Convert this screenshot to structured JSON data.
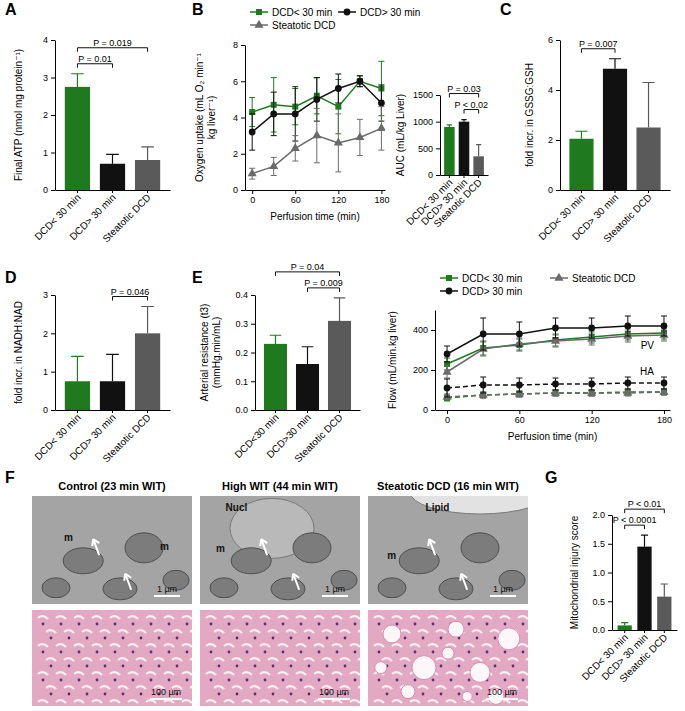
{
  "chart_data": [
    {
      "type": "bar",
      "label": "A",
      "ylabel": "Final ATP (nmol mg protein⁻¹)",
      "categories": [
        "DCD< 30 min",
        "DCD> 30 min",
        "Steatotic DCD"
      ],
      "values": [
        2.75,
        0.7,
        0.8
      ],
      "errors": [
        0.35,
        0.25,
        0.35
      ],
      "colors": [
        "#1f7a1f",
        "#111111",
        "#5a5a5a"
      ],
      "ylim": [
        0,
        4
      ],
      "yticks": [
        0,
        1,
        2,
        3,
        4
      ],
      "annotations": [
        {
          "text": "P = 0.01",
          "between": [
            "DCD< 30 min",
            "DCD> 30 min"
          ]
        },
        {
          "text": "P = 0.019",
          "between": [
            "DCD< 30 min",
            "Steatotic DCD"
          ]
        }
      ]
    },
    {
      "type": "line",
      "label": "B",
      "ylabel": [
        "Oxygen uptake (mL O₂ min⁻¹",
        "kg liver⁻¹)"
      ],
      "xlabel": "Perfusion time (min)",
      "x": [
        0,
        30,
        60,
        90,
        120,
        150,
        180
      ],
      "xlim": [
        -10,
        185
      ],
      "xticks": [
        0,
        60,
        120,
        180
      ],
      "ylim": [
        0,
        8
      ],
      "yticks": [
        0,
        2,
        4,
        6,
        8
      ],
      "legend": "top",
      "series": [
        {
          "name": "DCD< 30 min",
          "color": "#1f7a1f",
          "marker": "square",
          "line_style": "solid",
          "values": [
            4.3,
            4.7,
            4.6,
            5.2,
            4.6,
            6.0,
            5.6
          ],
          "errors": [
            0.8,
            1.5,
            1.0,
            1.0,
            1.5,
            0.3,
            1.5
          ]
        },
        {
          "name": "DCD> 30 min",
          "color": "#111111",
          "marker": "circle",
          "line_style": "solid",
          "values": [
            3.2,
            4.2,
            4.2,
            5.0,
            5.6,
            6.0,
            4.8
          ],
          "errors": [
            1.0,
            1.2,
            1.5,
            1.2,
            0.8,
            0.3,
            1.0
          ]
        },
        {
          "name": "Steatotic DCD",
          "color": "#6b6b6b",
          "marker": "triangle",
          "line_style": "solid",
          "values": [
            0.9,
            1.3,
            2.3,
            3.0,
            2.6,
            2.9,
            3.4
          ],
          "errors": [
            0.3,
            0.5,
            0.7,
            1.5,
            1.6,
            1.0,
            1.2
          ]
        }
      ]
    },
    {
      "type": "bar",
      "ylabel": "AUC (mL/kg Liver)",
      "categories": [
        "DCD< 30 min",
        "DCD> 30 min",
        "Steatotic DCD"
      ],
      "values": [
        900,
        1000,
        350
      ],
      "errors": [
        40,
        40,
        220
      ],
      "colors": [
        "#1f7a1f",
        "#111111",
        "#5a5a5a"
      ],
      "ylim": [
        0,
        1500
      ],
      "yticks": [
        0,
        500,
        1000,
        1500
      ],
      "annotations": [
        {
          "text": "P < 0.02",
          "between": [
            "DCD> 30 min",
            "Steatotic DCD"
          ]
        },
        {
          "text": "P = 0.03",
          "between": [
            "DCD< 30 min",
            "Steatotic DCD"
          ]
        }
      ]
    },
    {
      "type": "bar",
      "label": "C",
      "ylabel": "fold incr. in GSSG:GSH",
      "categories": [
        "DCD< 30 min",
        "DCD> 30 min",
        "Steatotic DCD"
      ],
      "values": [
        2.05,
        4.85,
        2.5
      ],
      "errors": [
        0.3,
        0.4,
        1.8
      ],
      "colors": [
        "#1f7a1f",
        "#111111",
        "#5a5a5a"
      ],
      "ylim": [
        0,
        6
      ],
      "yticks": [
        0,
        2,
        4,
        6
      ],
      "annotations": [
        {
          "text": "P = 0.007",
          "between": [
            "DCD< 30 min",
            "DCD> 30 min"
          ]
        }
      ]
    },
    {
      "type": "bar",
      "label": "D",
      "ylabel": "fold incr. in NADH:NAD",
      "categories": [
        "DCD< 30 min",
        "DCD> 30 min",
        "Steatotic DCD"
      ],
      "values": [
        0.75,
        0.75,
        2.0
      ],
      "errors": [
        0.65,
        0.7,
        0.7
      ],
      "colors": [
        "#1f7a1f",
        "#111111",
        "#5a5a5a"
      ],
      "ylim": [
        0,
        3
      ],
      "yticks": [
        0,
        1,
        2,
        3
      ],
      "annotations": [
        {
          "text": "P = 0.046",
          "between": [
            "DCD> 30 min",
            "Steatotic DCD"
          ]
        }
      ]
    },
    {
      "type": "bar",
      "label": "E",
      "ylabel": [
        "Arterial resistance (t3)",
        "(mmHg.min/mL)"
      ],
      "categories": [
        "DCD<30 min",
        "DCD>30 min",
        "Steatotic DCD"
      ],
      "values": [
        0.23,
        0.16,
        0.31
      ],
      "errors": [
        0.03,
        0.06,
        0.08
      ],
      "colors": [
        "#1f7a1f",
        "#111111",
        "#5a5a5a"
      ],
      "ylim": [
        0,
        0.4
      ],
      "yticks": [
        {
          "value": 0,
          "label": "0.0"
        },
        0.1,
        0.2,
        0.3,
        0.4
      ],
      "annotations": [
        {
          "text": "P = 0.009",
          "between": [
            "DCD>30 min",
            "Steatotic DCD"
          ]
        },
        {
          "text": "P = 0.04",
          "between": [
            "DCD<30 min",
            "Steatotic DCD"
          ]
        }
      ]
    },
    {
      "type": "line",
      "ylabel": "Flow (mL/min.kg liver)",
      "xlabel": "Perfusion time (min)",
      "x": [
        0,
        30,
        60,
        90,
        120,
        150,
        180
      ],
      "xlim": [
        -10,
        185
      ],
      "xticks": [
        0,
        60,
        120,
        180
      ],
      "ylim": [
        0,
        500
      ],
      "yticks": [
        0,
        200,
        400
      ],
      "legend": "top",
      "series": [
        {
          "name": "DCD< 30 min",
          "color": "#1f7a1f",
          "marker": "square",
          "line_style": "solid",
          "values": [
            230,
            310,
            325,
            350,
            365,
            380,
            385
          ],
          "errors": [
            30,
            35,
            30,
            30,
            30,
            30,
            30
          ]
        },
        {
          "name": "Steatotic DCD",
          "color": "#6b6b6b",
          "marker": "triangle",
          "line_style": "solid",
          "values": [
            190,
            305,
            330,
            345,
            355,
            370,
            375
          ],
          "errors": [
            30,
            35,
            30,
            30,
            30,
            30,
            30
          ]
        },
        {
          "name": "DCD> 30 min",
          "color": "#111111",
          "marker": "circle",
          "line_style": "solid",
          "values": [
            280,
            380,
            380,
            410,
            410,
            420,
            420
          ],
          "errors": [
            40,
            80,
            60,
            50,
            50,
            50,
            50
          ]
        },
        {
          "name": "DCD< 30 min",
          "color": "#1f7a1f",
          "marker": "square",
          "line_style": "dashed",
          "values": [
            60,
            75,
            80,
            85,
            85,
            90,
            90
          ],
          "errors": [
            15,
            15,
            15,
            15,
            15,
            15,
            15
          ]
        },
        {
          "name": "Steatotic DCD",
          "color": "#6b6b6b",
          "marker": "triangle",
          "line_style": "dashed",
          "values": [
            65,
            75,
            80,
            85,
            85,
            85,
            90
          ],
          "errors": [
            15,
            15,
            15,
            15,
            15,
            15,
            15
          ]
        },
        {
          "name": "DCD> 30 min",
          "color": "#111111",
          "marker": "circle",
          "line_style": "dashed",
          "values": [
            110,
            125,
            125,
            130,
            130,
            135,
            135
          ],
          "errors": [
            45,
            40,
            35,
            30,
            30,
            30,
            30
          ]
        }
      ],
      "annotations": [
        {
          "text": "PV",
          "series": 0,
          "position": "below"
        },
        {
          "text": "HA",
          "series": 5,
          "position": "above"
        }
      ]
    },
    {
      "type": "image",
      "label": "F",
      "panels": [
        {
          "title": "Control (23 min WIT)",
          "labels": [
            "m",
            "m"
          ],
          "scale_bars": [
            "1 µm",
            "100 µm"
          ]
        },
        {
          "title": "High WIT (44 min WIT)",
          "labels": [
            "Nucl",
            "m"
          ],
          "scale_bars": [
            "1 µm",
            "100 µm"
          ]
        },
        {
          "title": "Steatotic DCD (16 min WIT)",
          "labels": [
            "Lipid",
            "m"
          ],
          "scale_bars": [
            "1 µm",
            "100 µm"
          ]
        }
      ]
    },
    {
      "type": "bar",
      "label": "G",
      "ylabel": "Mitochondrial injury score",
      "categories": [
        "DCD< 30 min",
        "DCD> 30 min",
        "Steatotic DCD"
      ],
      "values": [
        0.08,
        1.45,
        0.58
      ],
      "errors": [
        0.05,
        0.2,
        0.22
      ],
      "colors": [
        "#1f7a1f",
        "#111111",
        "#5a5a5a"
      ],
      "ylim": [
        0,
        2
      ],
      "yticks": [
        {
          "value": 0,
          "label": "0.0"
        },
        0.5,
        {
          "value": 1,
          "label": "1.0"
        },
        1.5,
        {
          "value": 2,
          "label": "2.0"
        }
      ],
      "annotations": [
        {
          "text": "P < 0.0001",
          "between": [
            "DCD< 30 min",
            "DCD> 30 min"
          ]
        },
        {
          "text": "P < 0.01",
          "between": [
            "DCD< 30 min",
            "Steatotic DCD"
          ]
        }
      ]
    }
  ]
}
